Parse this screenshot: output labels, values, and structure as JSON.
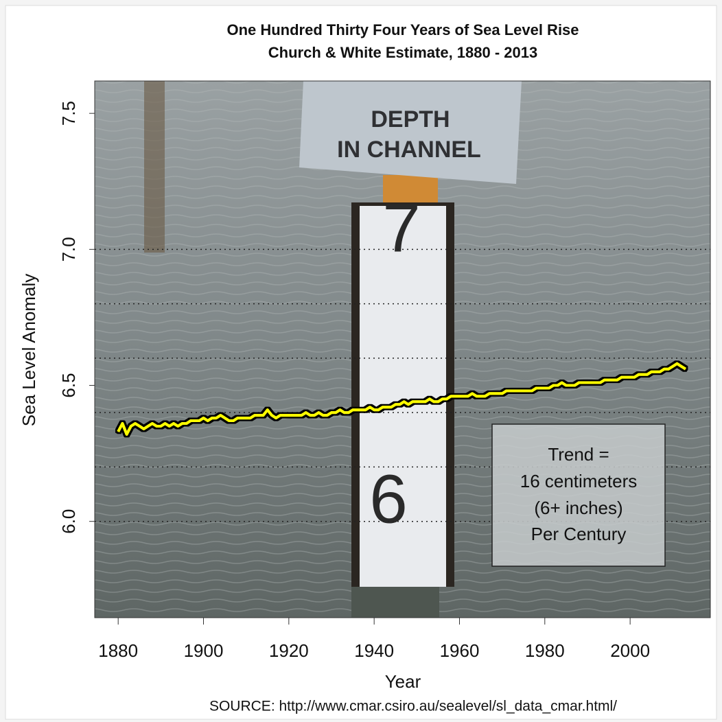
{
  "chart_data": {
    "type": "line",
    "title": "One Hundred Thirty Four Years of Sea Level Rise",
    "subtitle": "Church & White Estimate, 1880 - 2013",
    "x_label": "Year",
    "y_label": "Sea Level Anomaly",
    "source": "SOURCE: http://www.cmar.csiro.au/sealevel/sl_data_cmar.html/",
    "annotation": [
      "Trend =",
      "16 centimeters",
      "(6+ inches)",
      "Per Century"
    ],
    "photo_text": [
      "DEPTH",
      "IN CHANNEL",
      "7",
      "6"
    ],
    "xlim": [
      1874.5,
      2018.8
    ],
    "xticks": [
      1880,
      1900,
      1920,
      1940,
      1960,
      1980,
      2000
    ],
    "ylim": [
      5.646,
      7.619
    ],
    "yticks": [
      {
        "value": 6,
        "label": "6.0"
      },
      6.5,
      {
        "value": 7,
        "label": "7.0"
      },
      7.5
    ],
    "grid_lines": [
      6,
      6.2,
      6.4,
      6.6,
      6.8,
      7
    ],
    "x": [
      1880,
      1881,
      1882,
      1883,
      1884,
      1885,
      1886,
      1887,
      1888,
      1889,
      1890,
      1891,
      1892,
      1893,
      1894,
      1895,
      1896,
      1897,
      1898,
      1899,
      1900,
      1901,
      1902,
      1903,
      1904,
      1905,
      1906,
      1907,
      1908,
      1909,
      1910,
      1911,
      1912,
      1913,
      1914,
      1915,
      1916,
      1917,
      1918,
      1919,
      1920,
      1921,
      1922,
      1923,
      1924,
      1925,
      1926,
      1927,
      1928,
      1929,
      1930,
      1931,
      1932,
      1933,
      1934,
      1935,
      1936,
      1937,
      1938,
      1939,
      1940,
      1941,
      1942,
      1943,
      1944,
      1945,
      1946,
      1947,
      1948,
      1949,
      1950,
      1951,
      1952,
      1953,
      1954,
      1955,
      1956,
      1957,
      1958,
      1959,
      1960,
      1961,
      1962,
      1963,
      1964,
      1965,
      1966,
      1967,
      1968,
      1969,
      1970,
      1971,
      1972,
      1973,
      1974,
      1975,
      1976,
      1977,
      1978,
      1979,
      1980,
      1981,
      1982,
      1983,
      1984,
      1985,
      1986,
      1987,
      1988,
      1989,
      1990,
      1991,
      1992,
      1993,
      1994,
      1995,
      1996,
      1997,
      1998,
      1999,
      2000,
      2001,
      2002,
      2003,
      2004,
      2005,
      2006,
      2007,
      2008,
      2009,
      2010,
      2011,
      2012,
      2013
    ],
    "series": [
      {
        "color": "#ffff00",
        "values": [
          6.33,
          6.36,
          6.32,
          6.35,
          6.36,
          6.35,
          6.34,
          6.35,
          6.36,
          6.35,
          6.35,
          6.36,
          6.35,
          6.36,
          6.35,
          6.36,
          6.36,
          6.37,
          6.37,
          6.37,
          6.38,
          6.37,
          6.38,
          6.38,
          6.39,
          6.38,
          6.37,
          6.37,
          6.38,
          6.38,
          6.38,
          6.38,
          6.39,
          6.39,
          6.39,
          6.41,
          6.39,
          6.38,
          6.39,
          6.39,
          6.39,
          6.39,
          6.39,
          6.39,
          6.4,
          6.39,
          6.39,
          6.4,
          6.39,
          6.39,
          6.4,
          6.4,
          6.41,
          6.4,
          6.4,
          6.41,
          6.41,
          6.41,
          6.41,
          6.42,
          6.41,
          6.41,
          6.42,
          6.42,
          6.42,
          6.43,
          6.43,
          6.44,
          6.43,
          6.44,
          6.44,
          6.44,
          6.44,
          6.45,
          6.44,
          6.44,
          6.45,
          6.45,
          6.46,
          6.46,
          6.46,
          6.46,
          6.46,
          6.47,
          6.46,
          6.46,
          6.46,
          6.47,
          6.47,
          6.47,
          6.47,
          6.48,
          6.48,
          6.48,
          6.48,
          6.48,
          6.48,
          6.48,
          6.49,
          6.49,
          6.49,
          6.49,
          6.5,
          6.5,
          6.51,
          6.5,
          6.5,
          6.5,
          6.51,
          6.51,
          6.51,
          6.51,
          6.51,
          6.51,
          6.52,
          6.52,
          6.52,
          6.52,
          6.53,
          6.53,
          6.53,
          6.53,
          6.54,
          6.54,
          6.54,
          6.55,
          6.55,
          6.55,
          6.56,
          6.56,
          6.57,
          6.58,
          6.57,
          6.56
        ]
      }
    ]
  }
}
